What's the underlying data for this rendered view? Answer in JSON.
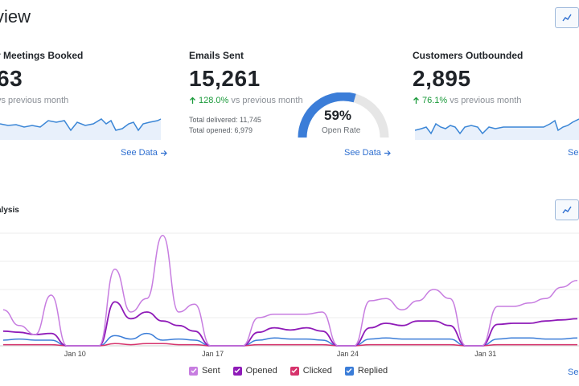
{
  "page": {
    "title": "view"
  },
  "cards": [
    {
      "title": "r Meetings Booked",
      "value": "63",
      "delta_pct": "",
      "delta_text": "vs previous month",
      "see_data": "See Data"
    },
    {
      "title": "Emails Sent",
      "value": "15,261",
      "delta_pct": "128.0%",
      "delta_text": "vs previous month",
      "sub_delivered": "Total delivered: 11,745",
      "sub_opened": "Total opened: 6,979",
      "see_data": "See Data",
      "gauge": {
        "value": 59,
        "label": "59%",
        "caption": "Open Rate"
      }
    },
    {
      "title": "Customers Outbounded",
      "value": "2,895",
      "delta_pct": "76.1%",
      "delta_text": "vs previous month",
      "see_data": "See"
    }
  ],
  "analysis": {
    "title": "alysis",
    "x_ticks": [
      "Jan 10",
      "Jan 17",
      "Jan 24",
      "Jan 31"
    ],
    "see_data": "See",
    "legend": [
      {
        "name": "Sent",
        "color": "#c77de0"
      },
      {
        "name": "Opened",
        "color": "#8f1bb8"
      },
      {
        "name": "Clicked",
        "color": "#d6336c"
      },
      {
        "name": "Replied",
        "color": "#3b7dd8"
      }
    ]
  },
  "colors": {
    "accent": "#2f6fd0",
    "positive": "#1a9a3a",
    "spark": "#3b86d6",
    "gauge_track": "#e6e6e6"
  },
  "icons": {
    "chart_button": "trending-up-icon",
    "arrow_up": "arrow-up-icon",
    "arrow_right": "arrow-right-icon",
    "check": "check-icon"
  },
  "chart_data": {
    "type": "line",
    "x_tick_labels": [
      "Jan 10",
      "Jan 17",
      "Jan 24",
      "Jan 31"
    ],
    "ylim": [
      0,
      100
    ],
    "grid": true,
    "legend": "bottom-center",
    "series": [
      {
        "name": "Sent",
        "values": [
          32,
          18,
          10,
          45,
          0,
          0,
          0,
          68,
          30,
          42,
          98,
          30,
          37,
          0,
          0,
          0,
          25,
          28,
          28,
          28,
          30,
          0,
          0,
          40,
          42,
          32,
          40,
          50,
          42,
          0,
          0,
          35,
          35,
          38,
          42,
          52,
          58
        ]
      },
      {
        "name": "Opened",
        "values": [
          13,
          12,
          10,
          11,
          0,
          0,
          0,
          39,
          24,
          30,
          22,
          18,
          13,
          0,
          0,
          0,
          12,
          16,
          14,
          16,
          13,
          0,
          0,
          16,
          20,
          18,
          22,
          22,
          18,
          0,
          0,
          19,
          20,
          20,
          22,
          23,
          24
        ]
      },
      {
        "name": "Clicked",
        "values": [
          1,
          1,
          1,
          1,
          0,
          0,
          0,
          2,
          1,
          2,
          2,
          1,
          1,
          0,
          0,
          0,
          1,
          1,
          1,
          1,
          1,
          0,
          0,
          1,
          1,
          1,
          1,
          1,
          1,
          0,
          0,
          1,
          1,
          1,
          1,
          1,
          1
        ]
      },
      {
        "name": "Replied",
        "values": [
          5,
          6,
          5,
          5,
          0,
          0,
          0,
          9,
          6,
          11,
          5,
          6,
          5,
          0,
          0,
          0,
          5,
          7,
          6,
          6,
          5,
          0,
          0,
          6,
          7,
          6,
          6,
          6,
          6,
          0,
          0,
          6,
          7,
          7,
          6,
          6,
          7
        ]
      }
    ]
  }
}
